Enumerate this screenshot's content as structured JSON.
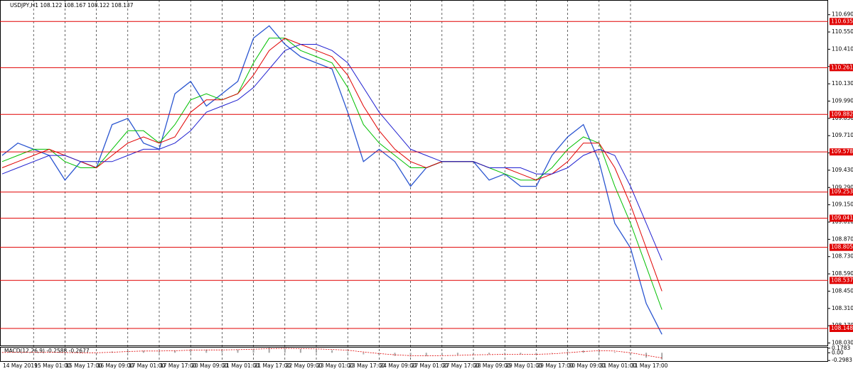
{
  "chart_data": [
    {
      "type": "line",
      "title": "USDJPY,H1  108.122 108.167 108.122 108.137",
      "categories": [
        "14 May 2019",
        null,
        "15 May 01:00",
        null,
        "15 May 17:00",
        null,
        "16 May 09:00",
        null,
        "17 May 01:00",
        null,
        "17 May 17:00",
        null,
        "20 May 09:00",
        null,
        "21 May 01:00",
        null,
        "21 May 17:00",
        null,
        "22 May 09:00",
        null,
        "23 May 01:00",
        null,
        "23 May 17:00",
        null,
        "24 May 09:00",
        null,
        "27 May 01:00",
        null,
        "27 May 17:00",
        null,
        "28 May 09:00",
        null,
        "29 May 01:00",
        null,
        "29 May 17:00",
        null,
        "30 May 09:00",
        null,
        "31 May 01:00",
        null,
        "31 May 17:00",
        null,
        null
      ],
      "series": [
        {
          "color": "#2a55d0",
          "values": [
            109.55,
            109.65,
            109.6,
            109.55,
            109.35,
            109.5,
            109.45,
            109.8,
            109.85,
            109.65,
            109.6,
            110.05,
            110.15,
            109.95,
            110.05,
            110.15,
            110.5,
            110.6,
            110.45,
            110.35,
            110.3,
            110.25,
            109.9,
            109.5,
            109.6,
            109.5,
            109.3,
            109.45,
            109.5,
            109.5,
            109.5,
            109.35,
            109.4,
            109.3,
            109.3,
            109.55,
            109.7,
            109.8,
            109.5,
            109.0,
            108.8,
            108.35,
            108.1
          ]
        },
        {
          "color": "#00c000",
          "values": [
            109.5,
            109.55,
            109.6,
            109.6,
            109.5,
            109.45,
            109.45,
            109.6,
            109.75,
            109.75,
            109.65,
            109.8,
            110.0,
            110.05,
            110.0,
            110.05,
            110.3,
            110.5,
            110.5,
            110.4,
            110.35,
            110.3,
            110.1,
            109.8,
            109.65,
            109.55,
            109.45,
            109.45,
            109.5,
            109.5,
            109.5,
            109.45,
            109.4,
            109.35,
            109.35,
            109.45,
            109.6,
            109.7,
            109.65,
            109.3,
            109.0,
            108.65,
            108.3
          ]
        },
        {
          "color": "#e00000",
          "values": [
            109.45,
            109.5,
            109.55,
            109.6,
            109.55,
            109.5,
            109.45,
            109.55,
            109.65,
            109.7,
            109.65,
            109.7,
            109.9,
            110.0,
            110.0,
            110.05,
            110.2,
            110.4,
            110.5,
            110.45,
            110.4,
            110.35,
            110.2,
            109.95,
            109.75,
            109.6,
            109.5,
            109.45,
            109.5,
            109.5,
            109.5,
            109.45,
            109.45,
            109.4,
            109.35,
            109.4,
            109.5,
            109.65,
            109.65,
            109.45,
            109.15,
            108.8,
            108.45
          ]
        },
        {
          "color": "#2020d0",
          "values": [
            109.4,
            109.45,
            109.5,
            109.55,
            109.55,
            109.5,
            109.5,
            109.5,
            109.55,
            109.6,
            109.6,
            109.65,
            109.75,
            109.9,
            109.95,
            110.0,
            110.1,
            110.25,
            110.4,
            110.45,
            110.45,
            110.4,
            110.3,
            110.1,
            109.9,
            109.75,
            109.6,
            109.55,
            109.5,
            109.5,
            109.5,
            109.45,
            109.45,
            109.45,
            109.4,
            109.4,
            109.45,
            109.55,
            109.6,
            109.55,
            109.3,
            109.0,
            108.7
          ]
        }
      ],
      "levels": [
        110.635,
        110.261,
        109.882,
        109.578,
        109.253,
        109.041,
        108.805,
        108.537,
        108.148
      ],
      "level_color": "#e00000",
      "ylim": [
        108.01,
        110.809
      ],
      "yticks": [
        {
          "value": 110.69,
          "label": "110.690"
        },
        {
          "value": 110.55,
          "label": "110.550"
        },
        {
          "value": 110.41,
          "label": "110.410"
        },
        {
          "value": 110.27,
          "label": "110.270"
        },
        {
          "value": 110.13,
          "label": "110.130"
        },
        {
          "value": 109.99,
          "label": "109.990"
        },
        {
          "value": 109.85,
          "label": "109.850"
        },
        {
          "value": 109.71,
          "label": "109.710"
        },
        {
          "value": 109.57,
          "label": "109.570"
        },
        {
          "value": 109.43,
          "label": "109.430"
        },
        {
          "value": 109.29,
          "label": "109.290"
        },
        {
          "value": 109.15,
          "label": "109.150"
        },
        {
          "value": 109.01,
          "label": "109.010"
        },
        {
          "value": 108.87,
          "label": "108.870"
        },
        {
          "value": 108.73,
          "label": "108.730"
        },
        {
          "value": 108.59,
          "label": "108.590"
        },
        {
          "value": 108.45,
          "label": "108.450"
        },
        {
          "value": 108.31,
          "label": "108.310"
        },
        {
          "value": 108.17,
          "label": "108.170"
        },
        {
          "value": 108.03,
          "label": "108.030"
        }
      ],
      "grid": "x"
    },
    {
      "type": "macd",
      "title": "MACD(12,26,9) -0.2588 -0.2677",
      "ylim": [
        -0.32,
        0.2
      ],
      "yticks": [
        0.1783,
        {
          "value": 0,
          "label": "0.00"
        },
        -0.2983
      ],
      "series": [
        {
          "type": "bar",
          "color": "#a8a8a8",
          "values": [
            0.02,
            0.03,
            0.03,
            0.02,
            -0.02,
            -0.01,
            0.0,
            0.05,
            0.09,
            0.08,
            0.06,
            0.09,
            0.12,
            0.12,
            0.11,
            0.12,
            0.16,
            0.19,
            0.18,
            0.15,
            0.13,
            0.1,
            0.04,
            -0.06,
            -0.1,
            -0.12,
            -0.15,
            -0.13,
            -0.1,
            -0.08,
            -0.06,
            -0.06,
            -0.05,
            -0.06,
            -0.06,
            -0.01,
            0.05,
            0.09,
            0.1,
            0.03,
            -0.08,
            -0.19,
            -0.26
          ]
        },
        {
          "type": "line",
          "color": "#e00000",
          "dash": true,
          "values": [
            0.01,
            0.02,
            0.02,
            0.02,
            0.01,
            0.0,
            0.0,
            0.02,
            0.05,
            0.07,
            0.07,
            0.08,
            0.1,
            0.11,
            0.11,
            0.12,
            0.14,
            0.16,
            0.17,
            0.16,
            0.15,
            0.13,
            0.1,
            0.03,
            -0.03,
            -0.08,
            -0.11,
            -0.12,
            -0.11,
            -0.1,
            -0.08,
            -0.07,
            -0.06,
            -0.06,
            -0.06,
            -0.04,
            0.0,
            0.05,
            0.08,
            0.07,
            0.0,
            -0.1,
            -0.2
          ]
        }
      ]
    }
  ]
}
